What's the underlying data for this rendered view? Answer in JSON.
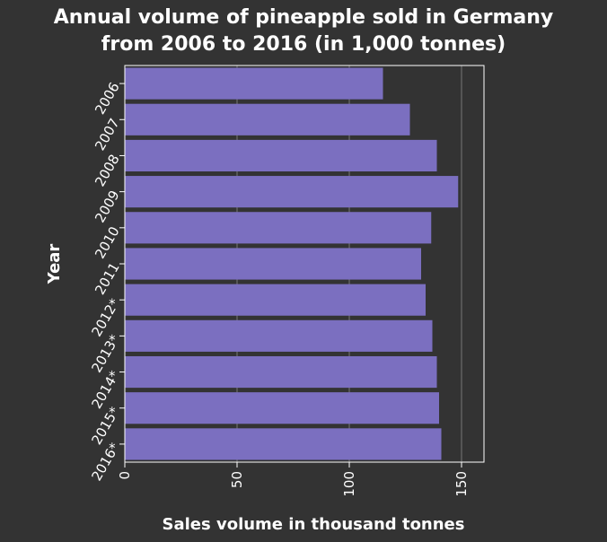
{
  "chart_data": {
    "type": "bar",
    "orientation": "horizontal",
    "title_lines": [
      "Annual volume of pineapple sold in Germany",
      "from 2006 to 2016 (in 1,000 tonnes)"
    ],
    "xlabel": "Sales volume in thousand tonnes",
    "ylabel": "Year",
    "categories": [
      "2006",
      "2007",
      "2008",
      "2009",
      "2010",
      "2011",
      "2012*",
      "2013*",
      "2014*",
      "2015*",
      "2016*"
    ],
    "values": [
      115,
      127,
      139,
      148.5,
      136.5,
      132,
      134,
      137,
      139,
      140,
      141
    ],
    "xticks": [
      0,
      50,
      100,
      150
    ],
    "xlim": [
      0,
      160
    ],
    "grid": "vertical lines at x ticks",
    "colors": {
      "background": "#333333",
      "plot_background": "#333333",
      "bar": "#7b6fc0",
      "text": "#ffffff",
      "axis": "#ffffff",
      "grid": "#777777"
    }
  }
}
